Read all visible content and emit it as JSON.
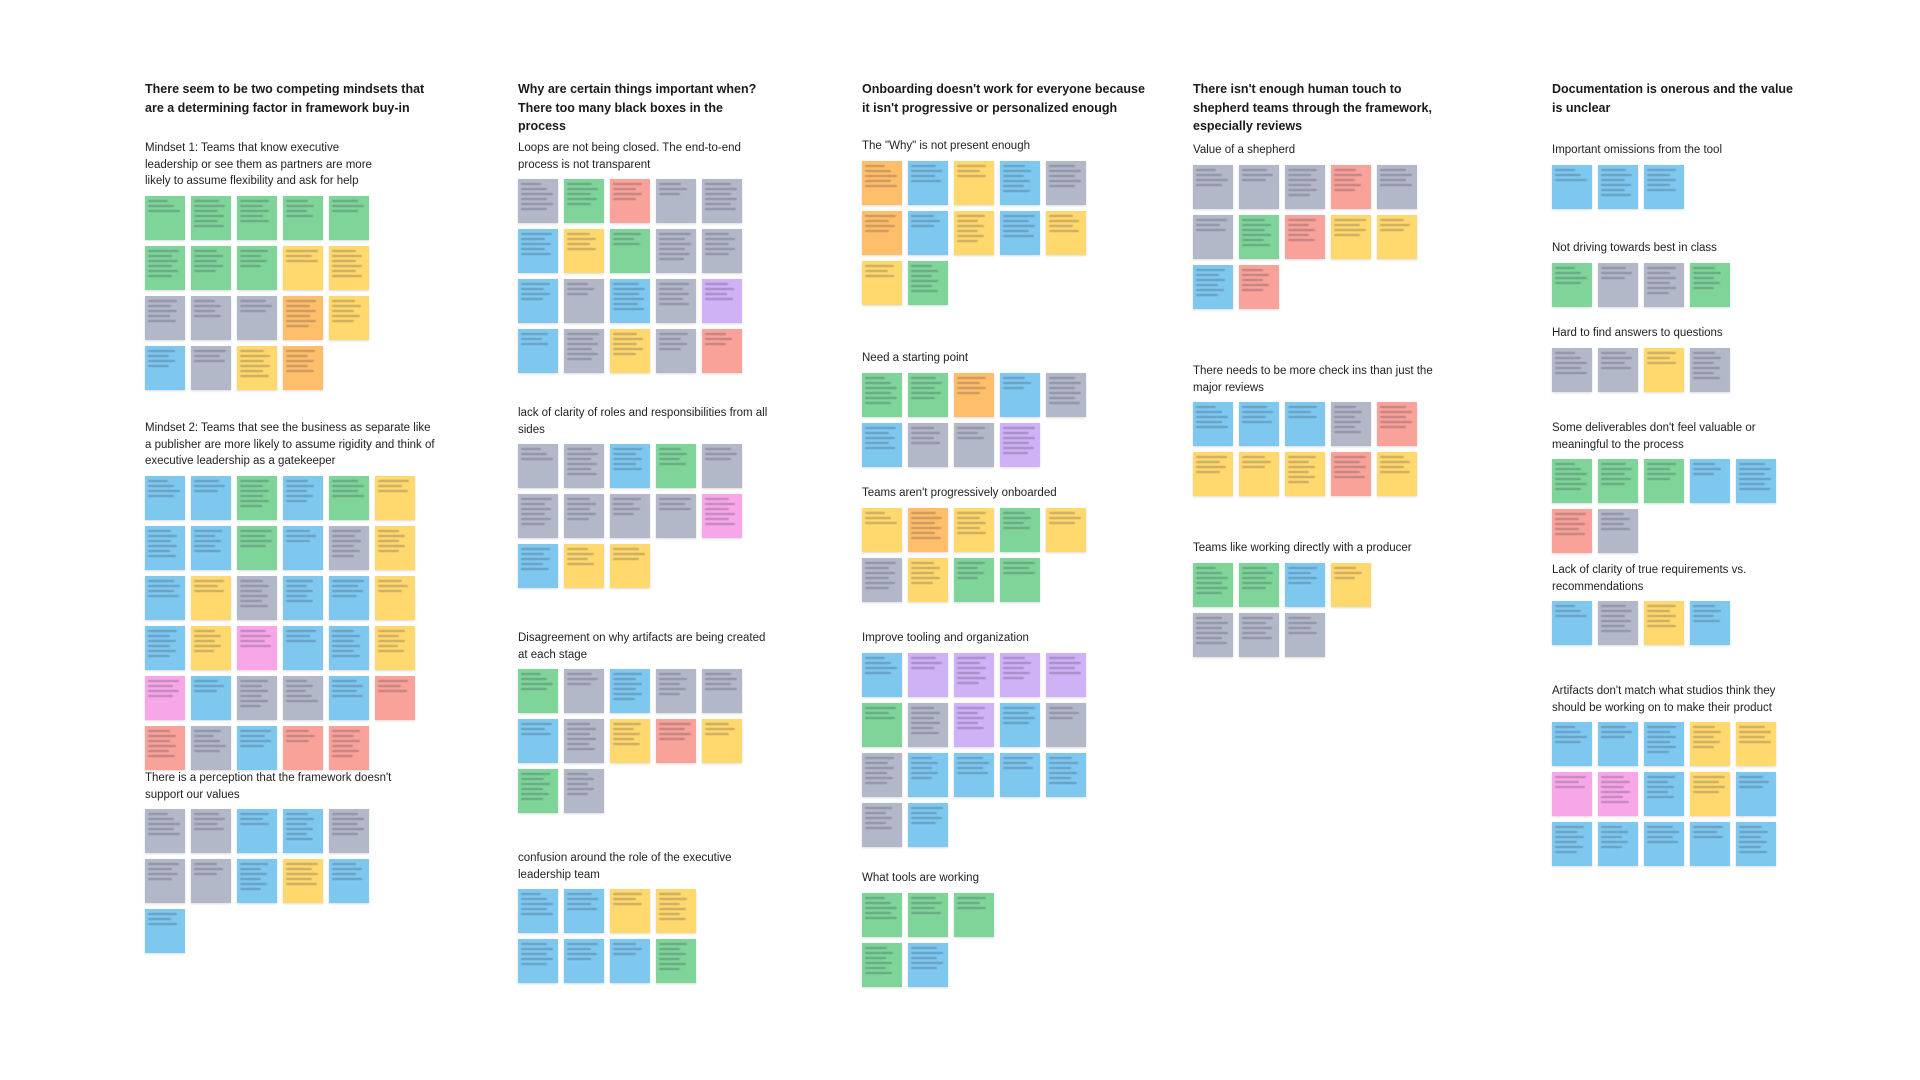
{
  "colors": {
    "green": "#7fd49a",
    "blue": "#7ec8f0",
    "yellow": "#ffd86e",
    "orange": "#ffbe6a",
    "gray": "#b3b8c8",
    "pink": "#f7a7e8",
    "red": "#f8a29a",
    "purple": "#cfb1f5"
  },
  "columns": [
    {
      "title": "There seem to be two competing mindsets that are a determining factor in framework buy-in",
      "clusters": [
        {
          "label": "Mindset 1: Teams that know executive leadership or see them as partners are more likely to assume flexibility and ask for help",
          "notes": [
            "green",
            "green",
            "green",
            "green",
            "green",
            "green",
            "green",
            "green",
            "yellow",
            "yellow",
            "gray",
            "gray",
            "gray",
            "orange",
            "yellow",
            "blue",
            "gray",
            "yellow",
            "orange"
          ]
        },
        {
          "label": "Mindset 2: Teams that see the business as separate like a publisher are more likely to assume rigidity and think of executive leadership as a gatekeeper",
          "notes": [
            "blue",
            "blue",
            "green",
            "blue",
            "green",
            "yellow",
            "blue",
            "blue",
            "green",
            "blue",
            "gray",
            "yellow",
            "blue",
            "yellow",
            "gray",
            "blue",
            "blue",
            "yellow",
            "blue",
            "yellow",
            "pink",
            "blue",
            "blue",
            "yellow",
            "pink",
            "blue",
            "gray",
            "gray",
            "blue",
            "red",
            "red",
            "gray",
            "blue",
            "red",
            "red"
          ]
        },
        {
          "label": "There is a perception that the framework doesn't support our values",
          "notes": [
            "gray",
            "gray",
            "blue",
            "blue",
            "gray",
            "gray",
            "gray",
            "blue",
            "yellow",
            "blue",
            "blue"
          ]
        }
      ]
    },
    {
      "title": "Why are certain things important when? There too many black boxes in the process",
      "clusters": [
        {
          "label": "Loops are not being closed. The end-to-end process is not transparent",
          "notes": [
            "gray",
            "green",
            "red",
            "gray",
            "gray",
            "blue",
            "yellow",
            "green",
            "gray",
            "gray",
            "blue",
            "gray",
            "blue",
            "gray",
            "purple",
            "blue",
            "gray",
            "yellow",
            "gray",
            "red"
          ]
        },
        {
          "label": "lack of clarity of roles and responsibilities from all sides",
          "notes": [
            "gray",
            "gray",
            "blue",
            "green",
            "gray",
            "gray",
            "gray",
            "gray",
            "gray",
            "pink",
            "blue",
            "yellow",
            "yellow"
          ]
        },
        {
          "label": "Disagreement on why artifacts are being created at each stage",
          "notes": [
            "green",
            "gray",
            "blue",
            "gray",
            "gray",
            "blue",
            "gray",
            "yellow",
            "red",
            "yellow",
            "green",
            "gray"
          ]
        },
        {
          "label": "confusion around the role of the executive leadership team",
          "notes": [
            "blue",
            "blue",
            "yellow",
            "yellow",
            "blue",
            "blue",
            "blue",
            "green"
          ]
        }
      ]
    },
    {
      "title": "Onboarding doesn't work for everyone because it isn't progressive or personalized enough",
      "clusters": [
        {
          "label": "The \"Why\" is not present enough",
          "notes": [
            "orange",
            "blue",
            "yellow",
            "blue",
            "gray",
            "orange",
            "blue",
            "yellow",
            "blue",
            "yellow",
            "yellow",
            "green"
          ]
        },
        {
          "label": "Need a starting point",
          "notes": [
            "green",
            "green",
            "orange",
            "blue",
            "gray",
            "blue",
            "gray",
            "gray",
            "purple"
          ]
        },
        {
          "label": "Teams aren't progressively onboarded",
          "notes": [
            "yellow",
            "orange",
            "yellow",
            "green",
            "yellow",
            "gray",
            "yellow",
            "green",
            "green"
          ]
        },
        {
          "label": "Improve tooling and organization",
          "notes": [
            "blue",
            "purple",
            "purple",
            "purple",
            "purple",
            "green",
            "gray",
            "purple",
            "blue",
            "gray",
            "gray",
            "blue",
            "blue",
            "blue",
            "blue",
            "gray",
            "blue"
          ]
        },
        {
          "label": "What tools are working",
          "notes": [
            "green",
            "green",
            "green",
            "green",
            "blue"
          ]
        }
      ]
    },
    {
      "title": "There isn't enough human touch to shepherd teams through the framework, especially reviews",
      "clusters": [
        {
          "label": "Value of a shepherd",
          "notes": [
            "gray",
            "gray",
            "gray",
            "red",
            "gray",
            "gray",
            "green",
            "red",
            "yellow",
            "yellow",
            "blue",
            "red"
          ]
        },
        {
          "label": "There needs to be more check ins than just the major reviews",
          "notes": [
            "blue",
            "blue",
            "blue",
            "gray",
            "red",
            "yellow",
            "yellow",
            "yellow",
            "red",
            "yellow"
          ]
        },
        {
          "label": "Teams like working directly with a producer",
          "notes": [
            "green",
            "green",
            "blue",
            "yellow",
            "gray",
            "gray",
            "gray"
          ]
        }
      ]
    },
    {
      "title": "Documentation is onerous and the value is unclear",
      "clusters": [
        {
          "label": "Important omissions from the tool",
          "notes": [
            "blue",
            "blue",
            "blue"
          ]
        },
        {
          "label": "Not driving towards best in class",
          "notes": [
            "green",
            "gray",
            "gray",
            "green"
          ]
        },
        {
          "label": "Hard to find answers to questions",
          "notes": [
            "gray",
            "gray",
            "yellow",
            "gray"
          ]
        },
        {
          "label": "Some deliverables don't feel valuable or meaningful to the process",
          "notes": [
            "green",
            "green",
            "green",
            "blue",
            "blue",
            "red",
            "gray"
          ]
        },
        {
          "label": "Lack of clarity of true requirements vs. recommendations",
          "notes": [
            "blue",
            "gray",
            "yellow",
            "blue"
          ]
        },
        {
          "label": "Artifacts don't match what studios think they should be working on to make their product",
          "notes": [
            "blue",
            "blue",
            "blue",
            "yellow",
            "yellow",
            "pink",
            "pink",
            "blue",
            "yellow",
            "blue",
            "blue",
            "blue",
            "blue",
            "blue",
            "blue"
          ]
        }
      ]
    }
  ]
}
